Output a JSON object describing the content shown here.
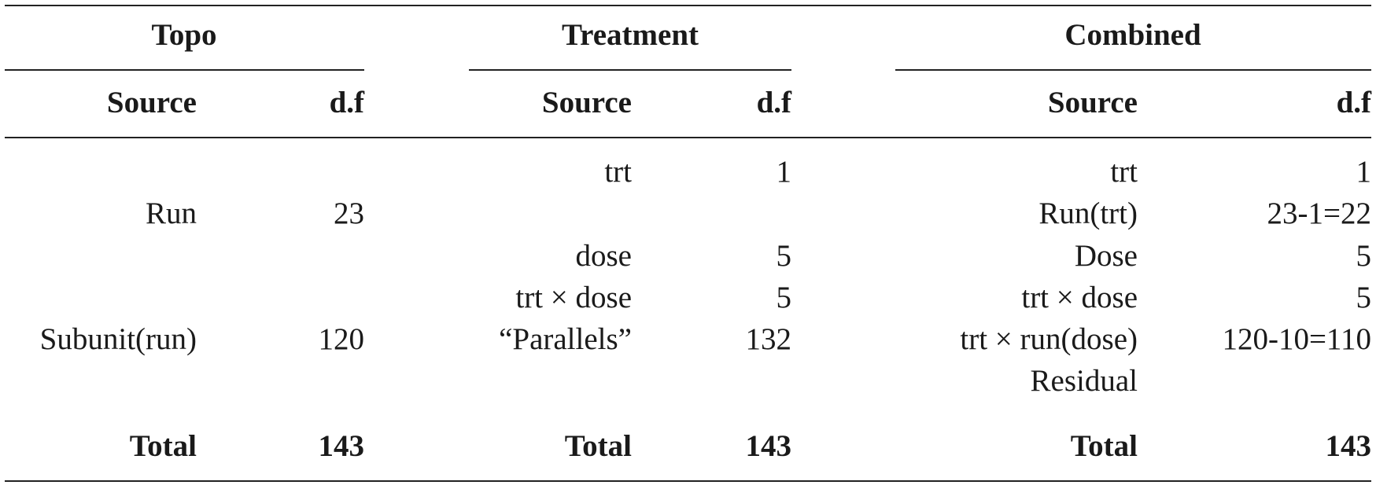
{
  "groups": [
    {
      "title": "Topo",
      "source_header": "Source",
      "df_header": "d.f",
      "rows": [
        {
          "source": "",
          "df": ""
        },
        {
          "source": "Run",
          "df": "23"
        },
        {
          "source": "",
          "df": ""
        },
        {
          "source": "",
          "df": ""
        },
        {
          "source": "Subunit(run)",
          "df": "120"
        },
        {
          "source": "",
          "df": ""
        }
      ],
      "total_label": "Total",
      "total_df": "143"
    },
    {
      "title": "Treatment",
      "source_header": "Source",
      "df_header": "d.f",
      "rows": [
        {
          "source": "trt",
          "df": "1"
        },
        {
          "source": "",
          "df": ""
        },
        {
          "source": "dose",
          "df": "5"
        },
        {
          "source": "trt × dose",
          "df": "5"
        },
        {
          "source": "“Parallels”",
          "df": "132"
        },
        {
          "source": "",
          "df": ""
        }
      ],
      "total_label": "Total",
      "total_df": "143"
    },
    {
      "title": "Combined",
      "source_header": "Source",
      "df_header": "d.f",
      "rows": [
        {
          "source": "trt",
          "df": "1"
        },
        {
          "source": "Run(trt)",
          "df": "23-1=22"
        },
        {
          "source": "Dose",
          "df": "5"
        },
        {
          "source": "trt × dose",
          "df": "5"
        },
        {
          "source": "trt  × run(dose)",
          "df": "120-10=110"
        },
        {
          "source": "Residual",
          "df": ""
        }
      ],
      "total_label": "Total",
      "total_df": "143"
    }
  ]
}
